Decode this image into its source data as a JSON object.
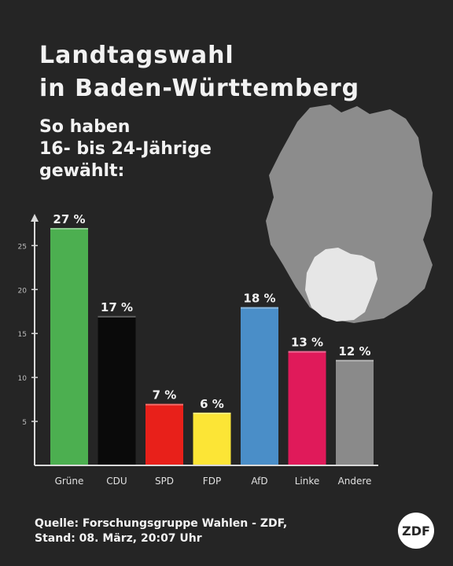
{
  "header": {
    "title_line1": "Landtagswahl",
    "title_line2": "in Baden-Württemberg",
    "subtitle_line1": "So haben",
    "subtitle_line2": "16- bis 24-Jährige",
    "subtitle_line3": "gewählt:"
  },
  "footer": {
    "source_line1": "Quelle: Forschungsgruppe Wahlen - ZDF,",
    "source_line2": "Stand: 08. März, 20:07 Uhr",
    "logo_text": "ZDF"
  },
  "colors": {
    "background": "#252525",
    "axis": "#d9d9d9",
    "map_germany": "#8c8c8c",
    "map_bw": "#e6e6e6"
  },
  "chart_data": {
    "type": "bar",
    "categories": [
      "Grüne",
      "CDU",
      "SPD",
      "FDP",
      "AfD",
      "Linke",
      "Andere"
    ],
    "values": [
      27,
      17,
      7,
      6,
      18,
      13,
      12
    ],
    "value_labels": [
      "27 %",
      "17 %",
      "7 %",
      "6 %",
      "18 %",
      "13 %",
      "12 %"
    ],
    "colors": [
      "#4caf50",
      "#0a0a0a",
      "#e8201a",
      "#fce536",
      "#4a8ec8",
      "#e01a5a",
      "#8a8a8a"
    ],
    "title": "",
    "xlabel": "",
    "ylabel": "",
    "ylim": [
      0,
      27
    ],
    "yticks": [
      5,
      10,
      15,
      20,
      25
    ],
    "grid": false,
    "legend": "none"
  }
}
